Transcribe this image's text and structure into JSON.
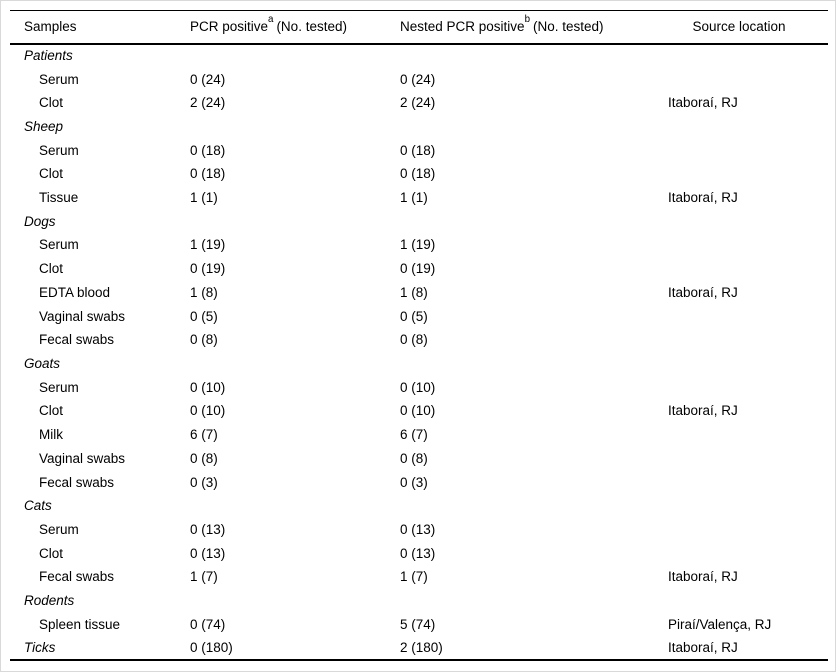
{
  "table": {
    "header": {
      "samples": "Samples",
      "pcr_main": "PCR positive",
      "pcr_sup": "a",
      "pcr_suffix": "(No. tested)",
      "nested_main": "Nested PCR positive",
      "nested_sup": "b",
      "nested_suffix": "(No. tested)",
      "source": "Source location"
    },
    "rows": [
      {
        "label": "Patients",
        "pcr": "",
        "nested": "",
        "source": ""
      },
      {
        "label": "Serum",
        "pcr": "0 (24)",
        "nested": "0 (24)",
        "source": ""
      },
      {
        "label": "Clot",
        "pcr": "2 (24)",
        "nested": "2 (24)",
        "source": "Itaboraí, RJ"
      },
      {
        "label": "Sheep",
        "pcr": "",
        "nested": "",
        "source": ""
      },
      {
        "label": "Serum",
        "pcr": "0 (18)",
        "nested": "0 (18)",
        "source": ""
      },
      {
        "label": "Clot",
        "pcr": "0 (18)",
        "nested": "0 (18)",
        "source": ""
      },
      {
        "label": "Tissue",
        "pcr": "1 (1)",
        "nested": "1 (1)",
        "source": "Itaboraí, RJ"
      },
      {
        "label": "Dogs",
        "pcr": "",
        "nested": "",
        "source": ""
      },
      {
        "label": "Serum",
        "pcr": "1 (19)",
        "nested": "1 (19)",
        "source": ""
      },
      {
        "label": "Clot",
        "pcr": "0 (19)",
        "nested": "0 (19)",
        "source": ""
      },
      {
        "label": "EDTA blood",
        "pcr": "1 (8)",
        "nested": "1 (8)",
        "source": "Itaboraí, RJ"
      },
      {
        "label": "Vaginal swabs",
        "pcr": "0 (5)",
        "nested": "0 (5)",
        "source": ""
      },
      {
        "label": "Fecal swabs",
        "pcr": "0 (8)",
        "nested": "0 (8)",
        "source": ""
      },
      {
        "label": "Goats",
        "pcr": "",
        "nested": "",
        "source": ""
      },
      {
        "label": "Serum",
        "pcr": "0 (10)",
        "nested": "0 (10)",
        "source": ""
      },
      {
        "label": "Clot",
        "pcr": "0 (10)",
        "nested": "0 (10)",
        "source": "Itaboraí, RJ"
      },
      {
        "label": "Milk",
        "pcr": "6 (7)",
        "nested": "6 (7)",
        "source": ""
      },
      {
        "label": "Vaginal swabs",
        "pcr": "0 (8)",
        "nested": "0 (8)",
        "source": ""
      },
      {
        "label": "Fecal swabs",
        "pcr": "0 (3)",
        "nested": "0 (3)",
        "source": ""
      },
      {
        "label": "Cats",
        "pcr": "",
        "nested": "",
        "source": ""
      },
      {
        "label": "Serum",
        "pcr": "0 (13)",
        "nested": "0 (13)",
        "source": ""
      },
      {
        "label": "Clot",
        "pcr": "0 (13)",
        "nested": "0 (13)",
        "source": ""
      },
      {
        "label": "Fecal swabs",
        "pcr": "1 (7)",
        "nested": "1 (7)",
        "source": "Itaboraí, RJ"
      },
      {
        "label": "Rodents",
        "pcr": "",
        "nested": "",
        "source": ""
      },
      {
        "label": "Spleen tissue",
        "pcr": "0 (74)",
        "nested": "5 (74)",
        "source": "Piraí/Valença, RJ"
      },
      {
        "label": "Ticks",
        "pcr": "0 (180)",
        "nested": "2 (180)",
        "source": "Itaboraí, RJ"
      }
    ]
  },
  "colors": {
    "text": "#000000",
    "rule": "#000000",
    "background": "#ffffff",
    "frame": "#d9d9d9"
  }
}
